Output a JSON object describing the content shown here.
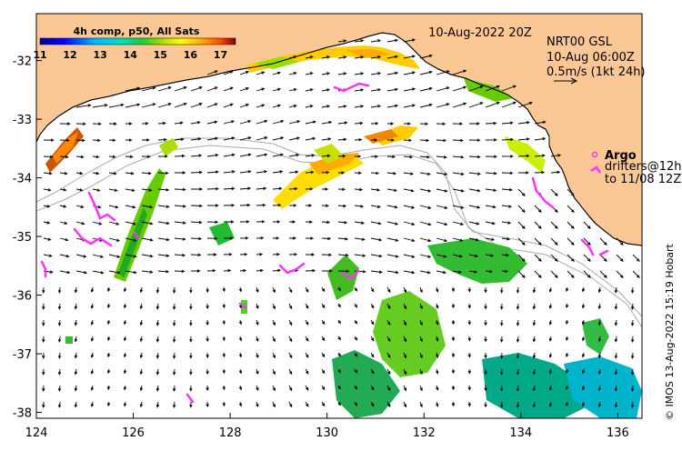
{
  "map": {
    "date_label": "10-Aug-2022 20Z",
    "colorbar": {
      "title": "4h comp, p50, All Sats",
      "ticks": [
        "11",
        "12",
        "13",
        "14",
        "15",
        "16",
        "17"
      ],
      "min": 11,
      "max": 17.5
    },
    "current_legend": {
      "line1": "NRT00 GSL",
      "line2": "10-Aug 06:00Z",
      "line3": "0.5m/s (1kt 24h)"
    },
    "argo_legend": {
      "title": "Argo",
      "line1": "drifters@12h",
      "line2": "to 11/08 12Z"
    },
    "credit": "© IMOS 13-Aug-2022 15:19 Hobart",
    "x_ticks": [
      "124",
      "126",
      "128",
      "130",
      "132",
      "134",
      "136"
    ],
    "y_ticks": [
      "-32",
      "-33",
      "-34",
      "-35",
      "-36",
      "-37",
      "-38"
    ],
    "lon_range": [
      124,
      136.5
    ],
    "lat_range": [
      -38.1,
      -31.2
    ],
    "colors": {
      "land": "#fbc794",
      "ocean": "#ffffff",
      "argo": "#ff33ff",
      "coast": "#000000",
      "shelf": "#aaaaaa"
    }
  }
}
